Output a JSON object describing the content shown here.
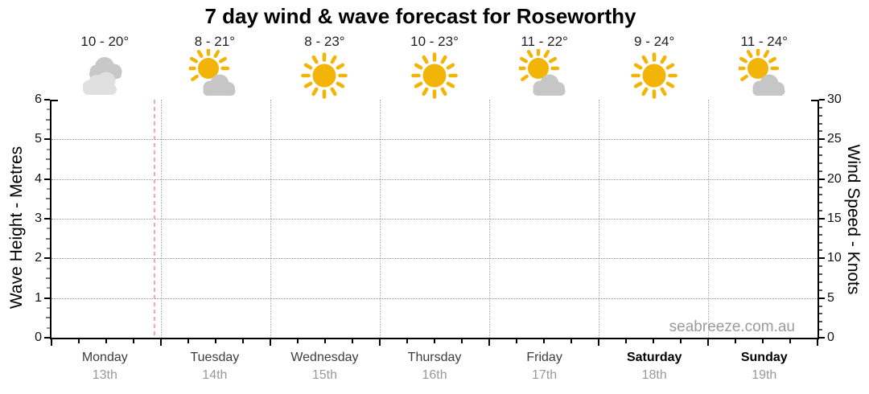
{
  "title": "7 day wind & wave forecast for Roseworthy",
  "watermark": "seabreeze.com.au",
  "days": [
    {
      "name": "Monday",
      "date": "13th",
      "temp": "10 - 20°",
      "icon": "cloudy",
      "weekend": false
    },
    {
      "name": "Tuesday",
      "date": "14th",
      "temp": "8 - 21°",
      "icon": "partly-cloudy",
      "weekend": false
    },
    {
      "name": "Wednesday",
      "date": "15th",
      "temp": "8 - 23°",
      "icon": "sunny",
      "weekend": false
    },
    {
      "name": "Thursday",
      "date": "16th",
      "temp": "10 - 23°",
      "icon": "sunny",
      "weekend": false
    },
    {
      "name": "Friday",
      "date": "17th",
      "temp": "11 - 22°",
      "icon": "partly-cloudy",
      "weekend": false
    },
    {
      "name": "Saturday",
      "date": "18th",
      "temp": "9 - 24°",
      "icon": "sunny",
      "weekend": true
    },
    {
      "name": "Sunday",
      "date": "19th",
      "temp": "11 - 24°",
      "icon": "partly-cloudy",
      "weekend": true
    }
  ],
  "left_axis": {
    "title": "Wave Height - Metres",
    "min": 0,
    "max": 6,
    "ticks": [
      0,
      1,
      2,
      3,
      4,
      5,
      6
    ],
    "minor_step": 0.25
  },
  "right_axis": {
    "title": "Wind Speed - Knots",
    "min": 0,
    "max": 30,
    "ticks": [
      0,
      5,
      10,
      15,
      20,
      25,
      30
    ],
    "minor_step": 1
  },
  "x_axis": {
    "subdivisions_per_day": 4
  },
  "colors": {
    "sun": "#F3B408",
    "cloud_back": "#C8C8C8",
    "cloud_front": "#E0E0E0",
    "cloud_partly": "#C6C6C6",
    "time_marker": "#F8A8A8",
    "grid": "#999999",
    "day_divider": "#ABABAB",
    "date_text": "#999999",
    "watermark_text": "#9B9B9B"
  },
  "chart_data": {
    "type": "line",
    "title": "7 day wind & wave forecast for Roseworthy",
    "categories": [
      "Monday 13th",
      "Tuesday 14th",
      "Wednesday 15th",
      "Thursday 16th",
      "Friday 17th",
      "Saturday 18th",
      "Sunday 19th"
    ],
    "temp_min": [
      10,
      8,
      8,
      10,
      11,
      9,
      11
    ],
    "temp_max": [
      20,
      21,
      23,
      23,
      22,
      24,
      24
    ],
    "conditions": [
      "cloudy",
      "partly-cloudy",
      "sunny",
      "sunny",
      "partly-cloudy",
      "sunny",
      "partly-cloudy"
    ],
    "series": [],
    "ylabel_left": "Wave Height - Metres",
    "ylim_left": [
      0,
      6
    ],
    "ylabel_right": "Wind Speed - Knots",
    "ylim_right": [
      0,
      30
    ],
    "grid": true,
    "legend": false,
    "current_time_marker_day_fraction": 0.95
  }
}
